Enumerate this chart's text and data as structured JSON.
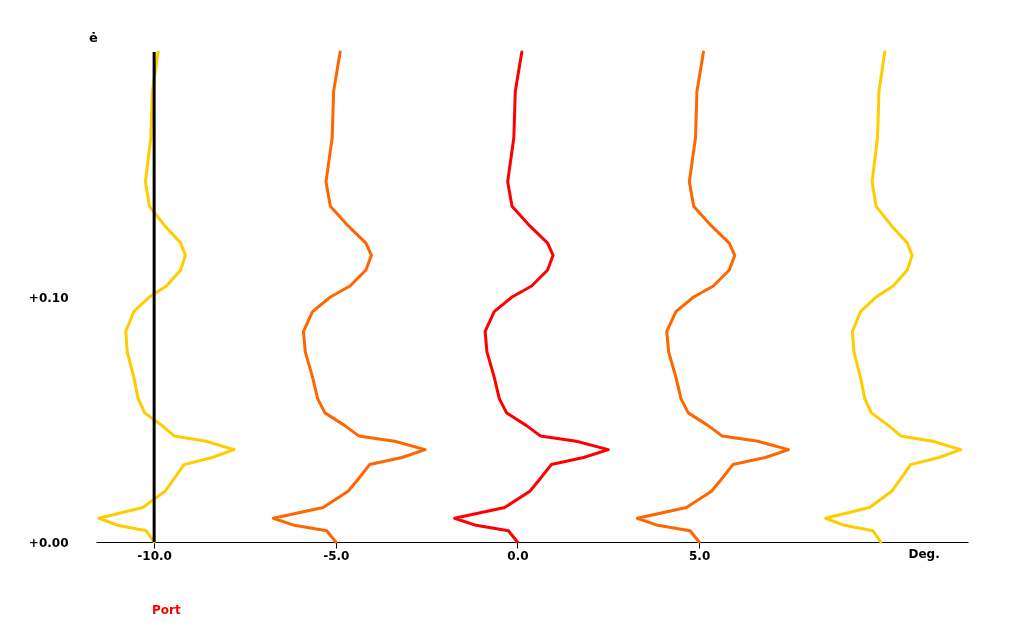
{
  "chart_data": {
    "type": "line",
    "ylabel": "ė",
    "xlabel": "Deg.",
    "xlim": [
      -11.6,
      12.4
    ],
    "xticks": [
      {
        "value": -10,
        "label": "-10.0"
      },
      {
        "value": -5,
        "label": "-5.0"
      },
      {
        "value": 0,
        "label": "0.0"
      },
      {
        "value": 5,
        "label": "5.0"
      }
    ],
    "ylim": [
      0,
      0.2
    ],
    "yticks": [
      {
        "value": 0,
        "label": "+0.00"
      },
      {
        "value": 0.1,
        "label": "+0.10"
      }
    ],
    "ref_lines": [
      {
        "axis": "x",
        "value": -10,
        "color": "#000000",
        "line_style": "solid"
      }
    ],
    "series": [
      {
        "color": "#ffcc00",
        "x": [
          -9.89,
          -10.05,
          -10.09,
          -10.24,
          -10.13,
          -9.7,
          -9.27,
          -9.14,
          -9.27,
          -9.66,
          -10.13,
          -10.56,
          -10.78,
          -10.74,
          -10.56,
          -10.44,
          -10.26,
          -9.79,
          -9.45,
          -8.57,
          -7.8,
          -8.4,
          -9.18,
          -9.49,
          -9.7,
          -10.31,
          -11.52,
          -11.0,
          -10.22,
          -10.0
        ],
        "values": [
          0.2,
          0.184,
          0.165,
          0.147,
          0.137,
          0.129,
          0.122,
          0.117,
          0.111,
          0.1045,
          0.1,
          0.094,
          0.086,
          0.0776,
          0.0673,
          0.0585,
          0.0527,
          0.0476,
          0.0433,
          0.0411,
          0.0377,
          0.0345,
          0.0316,
          0.025,
          0.0207,
          0.0141,
          0.0097,
          0.0068,
          0.0046,
          0
        ]
      },
      {
        "color": "#ff6600",
        "x": [
          -4.88,
          -5.06,
          -5.1,
          -5.27,
          -5.15,
          -4.66,
          -4.17,
          -4.02,
          -4.17,
          -4.61,
          -5.15,
          -5.64,
          -5.89,
          -5.84,
          -5.64,
          -5.5,
          -5.3,
          -4.76,
          -4.37,
          -3.38,
          -2.54,
          -3.18,
          -4.07,
          -4.42,
          -4.66,
          -5.35,
          -6.72,
          -6.14,
          -5.25,
          -5.0
        ],
        "values": [
          0.2,
          0.184,
          0.165,
          0.147,
          0.137,
          0.129,
          0.122,
          0.117,
          0.111,
          0.1045,
          0.1,
          0.094,
          0.086,
          0.0776,
          0.0673,
          0.0585,
          0.0527,
          0.0476,
          0.0433,
          0.0411,
          0.0377,
          0.0345,
          0.0316,
          0.025,
          0.0207,
          0.0141,
          0.0097,
          0.0068,
          0.0046,
          0
        ]
      },
      {
        "color": "#ff0000",
        "x": [
          0.12,
          -0.06,
          -0.1,
          -0.27,
          -0.15,
          0.34,
          0.83,
          0.98,
          0.83,
          0.39,
          -0.15,
          -0.64,
          -0.89,
          -0.84,
          -0.64,
          -0.5,
          -0.3,
          0.24,
          0.63,
          1.62,
          2.5,
          1.82,
          0.93,
          0.58,
          0.34,
          -0.35,
          -1.73,
          -1.14,
          -0.25,
          0.0
        ],
        "values": [
          0.2,
          0.184,
          0.165,
          0.147,
          0.137,
          0.129,
          0.122,
          0.117,
          0.111,
          0.1045,
          0.1,
          0.094,
          0.086,
          0.0776,
          0.0673,
          0.0585,
          0.0527,
          0.0476,
          0.0433,
          0.0411,
          0.0377,
          0.0345,
          0.0316,
          0.025,
          0.0207,
          0.0141,
          0.0097,
          0.0068,
          0.0046,
          0
        ]
      },
      {
        "color": "#ff6600",
        "x": [
          5.12,
          4.94,
          4.9,
          4.73,
          4.85,
          5.34,
          5.83,
          5.98,
          5.83,
          5.39,
          4.85,
          4.36,
          4.11,
          4.16,
          4.36,
          4.5,
          4.7,
          5.24,
          5.63,
          6.62,
          7.46,
          6.82,
          5.93,
          5.58,
          5.34,
          4.65,
          3.3,
          3.86,
          4.75,
          5.0
        ],
        "values": [
          0.2,
          0.184,
          0.165,
          0.147,
          0.137,
          0.129,
          0.122,
          0.117,
          0.111,
          0.1045,
          0.1,
          0.094,
          0.086,
          0.0776,
          0.0673,
          0.0585,
          0.0527,
          0.0476,
          0.0433,
          0.0411,
          0.0377,
          0.0345,
          0.0316,
          0.025,
          0.0207,
          0.0141,
          0.0097,
          0.0068,
          0.0046,
          0
        ]
      },
      {
        "color": "#ffcc00",
        "x": [
          10.11,
          9.95,
          9.91,
          9.76,
          9.87,
          10.3,
          10.73,
          10.86,
          10.73,
          10.34,
          9.87,
          9.44,
          9.22,
          9.26,
          9.44,
          9.56,
          9.74,
          10.21,
          10.55,
          11.43,
          12.2,
          11.6,
          10.82,
          10.51,
          10.3,
          9.69,
          8.48,
          9.0,
          9.78,
          10.0
        ],
        "values": [
          0.2,
          0.184,
          0.165,
          0.147,
          0.137,
          0.129,
          0.122,
          0.117,
          0.111,
          0.1045,
          0.1,
          0.094,
          0.086,
          0.0776,
          0.0673,
          0.0585,
          0.0527,
          0.0476,
          0.0433,
          0.0411,
          0.0377,
          0.0345,
          0.0316,
          0.025,
          0.0207,
          0.0141,
          0.0097,
          0.0068,
          0.0046,
          0
        ]
      }
    ],
    "annotations": [
      "Port"
    ],
    "grid": false,
    "legend": false,
    "marker": "none",
    "line_style": "solid"
  }
}
